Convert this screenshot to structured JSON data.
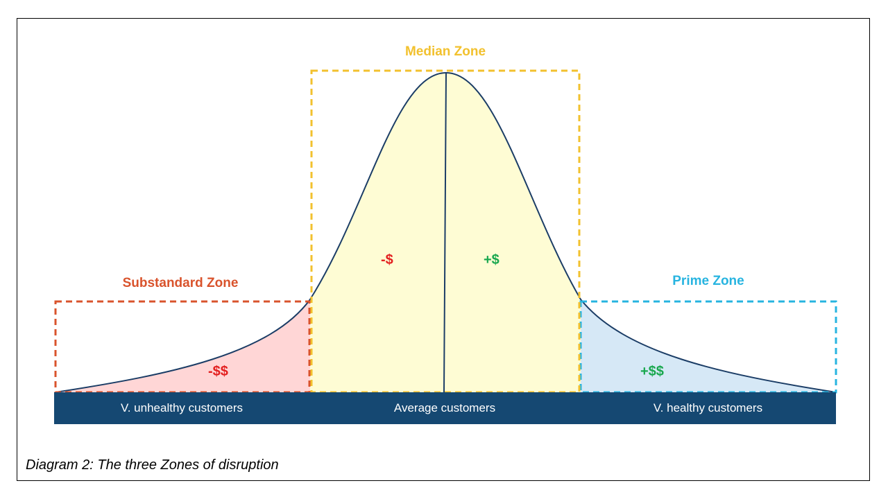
{
  "colors": {
    "substandard": "#d9532c",
    "median": "#f2c12e",
    "prime": "#27b4e0",
    "negative": "#e32020",
    "positive": "#1aa84f",
    "axis_band": "#154872",
    "curve": "#1b3d66",
    "fill_substandard": "#ffd6d6",
    "fill_median": "#fefcd4",
    "fill_prime": "#d6e8f6"
  },
  "zones": {
    "substandard": {
      "title": "Substandard Zone",
      "left_value": "-$$"
    },
    "median": {
      "title": "Median Zone",
      "left_value": "-$",
      "right_value": "+$"
    },
    "prime": {
      "title": "Prime Zone",
      "right_value": "+$$"
    }
  },
  "axis": {
    "left_label": "V. unhealthy customers",
    "center_label": "Average customers",
    "right_label": "V. healthy customers"
  },
  "caption": "Diagram 2: The three Zones of disruption"
}
